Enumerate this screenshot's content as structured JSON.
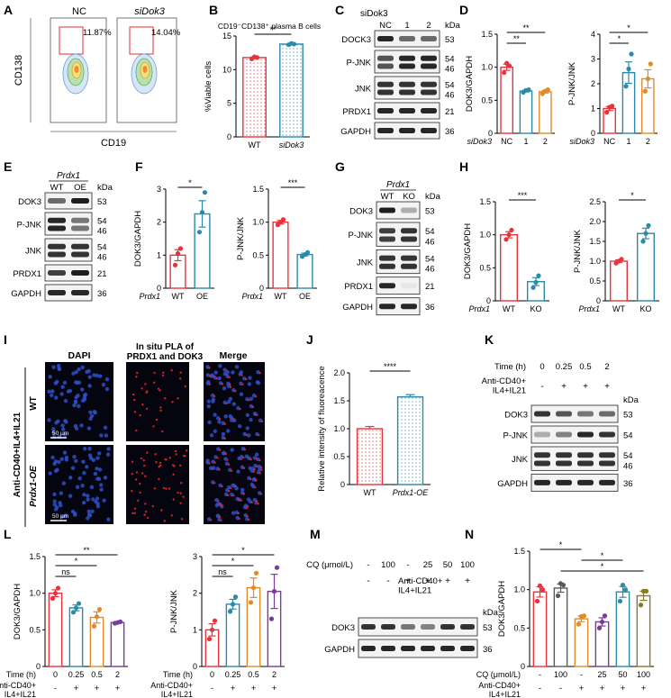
{
  "panel_letters": [
    "A",
    "B",
    "C",
    "D",
    "E",
    "F",
    "G",
    "H",
    "I",
    "J",
    "K",
    "L",
    "M",
    "N"
  ],
  "A": {
    "left_label": "NC",
    "right_label": "siDok3",
    "left_pct": "11.87%",
    "right_pct": "14.04%",
    "ylabel": "CD138",
    "xlabel": "CD19"
  },
  "blot_C": {
    "header": "siDok3",
    "lanes": [
      "NC",
      "1",
      "2"
    ],
    "kda_label": "kDa",
    "rows": [
      {
        "name": "DOCK3",
        "kda": [
          "53"
        ]
      },
      {
        "name": "P-JNK",
        "kda": [
          "54",
          "46"
        ]
      },
      {
        "name": "JNK",
        "kda": [
          "54",
          "46"
        ]
      },
      {
        "name": "PRDX1",
        "kda": [
          "21"
        ]
      },
      {
        "name": "GAPDH",
        "kda": [
          "36"
        ]
      }
    ]
  },
  "blot_E": {
    "header": "Prdx1",
    "lanes": [
      "WT",
      "OE"
    ],
    "kda_label": "kDa",
    "rows": [
      {
        "name": "DOK3",
        "kda": [
          "53"
        ]
      },
      {
        "name": "P-JNK",
        "kda": [
          "54",
          "46"
        ]
      },
      {
        "name": "JNK",
        "kda": [
          "54",
          "46"
        ]
      },
      {
        "name": "PRDX1",
        "kda": [
          "21"
        ]
      },
      {
        "name": "GAPDH",
        "kda": [
          "36"
        ]
      }
    ]
  },
  "blot_G": {
    "header": "Prdx1",
    "lanes": [
      "WT",
      "KO"
    ],
    "kda_label": "kDa",
    "rows": [
      {
        "name": "DOK3",
        "kda": [
          "53"
        ]
      },
      {
        "name": "P-JNK",
        "kda": [
          "54",
          "46"
        ]
      },
      {
        "name": "JNK",
        "kda": [
          "54",
          "46"
        ]
      },
      {
        "name": "PRDX1",
        "kda": [
          "21"
        ]
      },
      {
        "name": "GAPDH",
        "kda": [
          "36"
        ]
      }
    ]
  },
  "blot_K": {
    "row1_label": "Time (h)",
    "row1": [
      "0",
      "0.25",
      "0.5",
      "2"
    ],
    "row2_label": "Anti-CD40+\nIL4+IL21",
    "row2": [
      "-",
      "+",
      "+",
      "+"
    ],
    "kda_label": "kDa",
    "rows": [
      {
        "name": "DOK3",
        "kda": [
          "53"
        ]
      },
      {
        "name": "P-JNK",
        "kda": [
          "54"
        ]
      },
      {
        "name": "JNK",
        "kda": [
          "54",
          "46"
        ]
      },
      {
        "name": "GAPDH",
        "kda": [
          "36"
        ]
      }
    ]
  },
  "blot_M": {
    "row1_label": "CQ (μmol/L)",
    "row1": [
      "-",
      "100",
      "-",
      "25",
      "50",
      "100"
    ],
    "row2_label": "Anti-CD40+\nIL4+IL21",
    "row2": [
      "-",
      "-",
      "+",
      "+",
      "+",
      "+"
    ],
    "kda_label": "kDa",
    "rows": [
      {
        "name": "DOK3",
        "kda": [
          "53"
        ]
      },
      {
        "name": "GAPDH",
        "kda": [
          "36"
        ]
      }
    ]
  },
  "I": {
    "col_titles": [
      "DAPI",
      "In situ PLA of\nPRDX1 and DOK3",
      "Merge"
    ],
    "row_labels": [
      "WT",
      "Prdx1-OE"
    ],
    "side_label": "Anti-CD40+IL4+IL21",
    "scale": "50 μm"
  },
  "chart_data": [
    {
      "id": "B",
      "type": "bar",
      "title": "CD19⁻CD138⁺ plasma B cells",
      "categories": [
        "WT",
        "siDok3"
      ],
      "values": [
        11.8,
        13.8
      ],
      "points": [
        [
          11.6,
          11.9,
          11.8
        ],
        [
          13.7,
          13.9,
          13.8
        ]
      ],
      "ylabel": "%Viable cells",
      "ylim": [
        0,
        15
      ],
      "yticks": [
        0,
        5,
        10,
        15
      ],
      "sig": [
        "**"
      ]
    },
    {
      "id": "D1",
      "type": "bar",
      "categories": [
        "NC",
        "1",
        "2"
      ],
      "xprefix": "siDok3",
      "values": [
        1.0,
        0.64,
        0.63
      ],
      "points": [
        [
          0.92,
          1.06,
          1.02
        ],
        [
          0.62,
          0.65,
          0.66
        ],
        [
          0.6,
          0.64,
          0.66
        ]
      ],
      "ylabel": "DOK3/GAPDH",
      "ylim": [
        0,
        1.5
      ],
      "yticks": [
        0,
        0.5,
        1.0,
        1.5
      ],
      "sig": [
        "**",
        "**"
      ]
    },
    {
      "id": "D2",
      "type": "bar",
      "categories": [
        "NC",
        "1",
        "2"
      ],
      "xprefix": "siDok3",
      "values": [
        1.0,
        2.45,
        2.2
      ],
      "points": [
        [
          0.85,
          1.05,
          1.1
        ],
        [
          1.9,
          2.6,
          3.2
        ],
        [
          1.7,
          2.2,
          2.8
        ]
      ],
      "ylabel": "P-JNK/JNK",
      "ylim": [
        0,
        4
      ],
      "yticks": [
        0,
        1,
        2,
        3,
        4
      ],
      "sig": [
        "*",
        "*"
      ]
    },
    {
      "id": "F1",
      "type": "bar",
      "categories": [
        "WT",
        "OE"
      ],
      "xprefix": "Prdx1",
      "values": [
        1.0,
        2.25
      ],
      "points": [
        [
          0.7,
          1.05,
          1.2
        ],
        [
          1.7,
          2.3,
          2.9
        ]
      ],
      "ylabel": "DOK3/GAPDH",
      "ylim": [
        0,
        3
      ],
      "yticks": [
        0,
        1,
        2,
        3
      ],
      "sig": [
        "*"
      ]
    },
    {
      "id": "F2",
      "type": "bar",
      "categories": [
        "WT",
        "OE"
      ],
      "xprefix": "Prdx1",
      "values": [
        1.0,
        0.51
      ],
      "points": [
        [
          0.96,
          1.0,
          1.04
        ],
        [
          0.48,
          0.51,
          0.54
        ]
      ],
      "ylabel": "P-JNK/JNK",
      "ylim": [
        0,
        1.5
      ],
      "yticks": [
        0,
        0.5,
        1.0,
        1.5
      ],
      "sig": [
        "***"
      ]
    },
    {
      "id": "H1",
      "type": "bar",
      "categories": [
        "WT",
        "KO"
      ],
      "xprefix": "Prdx1",
      "values": [
        1.0,
        0.29
      ],
      "points": [
        [
          0.93,
          1.0,
          1.07
        ],
        [
          0.2,
          0.28,
          0.38
        ]
      ],
      "ylabel": "DOK3/GAPDH",
      "ylim": [
        0,
        1.5
      ],
      "yticks": [
        0,
        0.5,
        1.0,
        1.5
      ],
      "sig": [
        "***"
      ]
    },
    {
      "id": "H2",
      "type": "bar",
      "categories": [
        "WT",
        "KO"
      ],
      "xprefix": "Prdx1",
      "values": [
        1.0,
        1.7
      ],
      "points": [
        [
          0.95,
          1.0,
          1.05
        ],
        [
          1.5,
          1.7,
          1.9
        ]
      ],
      "ylabel": "P-JNK/JNK",
      "ylim": [
        0,
        2.5
      ],
      "yticks": [
        0,
        0.5,
        1.0,
        1.5,
        2.0,
        2.5
      ],
      "sig": [
        "*"
      ]
    },
    {
      "id": "J",
      "type": "bar",
      "categories": [
        "WT",
        "Prdx1-OE"
      ],
      "values": [
        1.0,
        1.57
      ],
      "points": [
        [],
        []
      ],
      "ylabel": "Relative intensity of fluoreacence",
      "ylim": [
        0,
        2.0
      ],
      "yticks": [
        0,
        0.5,
        1.0,
        1.5,
        2.0
      ],
      "sig": [
        "****"
      ]
    },
    {
      "id": "L1",
      "type": "bar",
      "categories": [
        "0",
        "0.25",
        "0.5",
        "2"
      ],
      "row1_label": "Time (h)",
      "row2_label": "Anti-CD40+\nIL4+IL21",
      "row2": [
        "-",
        "+",
        "+",
        "+"
      ],
      "values": [
        1.0,
        0.8,
        0.67,
        0.6
      ],
      "points": [
        [
          0.93,
          1.0,
          1.07
        ],
        [
          0.74,
          0.8,
          0.86
        ],
        [
          0.55,
          0.68,
          0.78
        ],
        [
          0.59,
          0.6,
          0.61
        ]
      ],
      "ylabel": "DOK3/GAPDH",
      "ylim": [
        0,
        1.5
      ],
      "yticks": [
        0,
        0.5,
        1.0,
        1.5
      ],
      "sig": [
        "**",
        "*",
        "ns"
      ]
    },
    {
      "id": "L2",
      "type": "bar",
      "categories": [
        "0",
        "0.25",
        "0.5",
        "2"
      ],
      "row1_label": "Time (h)",
      "row2_label": "Anti-CD40+\nIL4+IL21",
      "row2": [
        "-",
        "+",
        "+",
        "+"
      ],
      "values": [
        1.0,
        1.7,
        2.15,
        2.05
      ],
      "points": [
        [
          0.75,
          1.0,
          1.25
        ],
        [
          1.5,
          1.7,
          1.9
        ],
        [
          1.75,
          2.15,
          2.55
        ],
        [
          1.3,
          2.05,
          2.7
        ]
      ],
      "ylabel": "P-JNK/JNK",
      "ylim": [
        0,
        3
      ],
      "yticks": [
        0,
        1,
        2,
        3
      ],
      "sig": [
        "*",
        "*",
        "ns"
      ]
    },
    {
      "id": "N",
      "type": "bar",
      "categories": [
        "-",
        "100",
        "-",
        "25",
        "50",
        "100"
      ],
      "row1_label": "CQ (μmol/L)",
      "row2_label": "Anti-CD40+\nIL4+IL21",
      "row2": [
        "-",
        "-",
        "+",
        "+",
        "+",
        "+"
      ],
      "values": [
        0.97,
        1.02,
        0.62,
        0.58,
        0.97,
        0.92
      ],
      "points": [
        [
          0.85,
          1.05,
          1.0
        ],
        [
          0.92,
          1.08,
          1.06
        ],
        [
          0.55,
          0.65,
          0.66
        ],
        [
          0.5,
          0.58,
          0.66
        ],
        [
          0.85,
          1.06,
          1.0
        ],
        [
          0.8,
          0.98,
          0.98
        ]
      ],
      "ylabel": "DOK3/GAPDH",
      "ylim": [
        0,
        1.5
      ],
      "yticks": [
        0,
        0.5,
        1.0,
        1.5
      ],
      "sig": [
        "*",
        "*",
        "*"
      ]
    }
  ]
}
